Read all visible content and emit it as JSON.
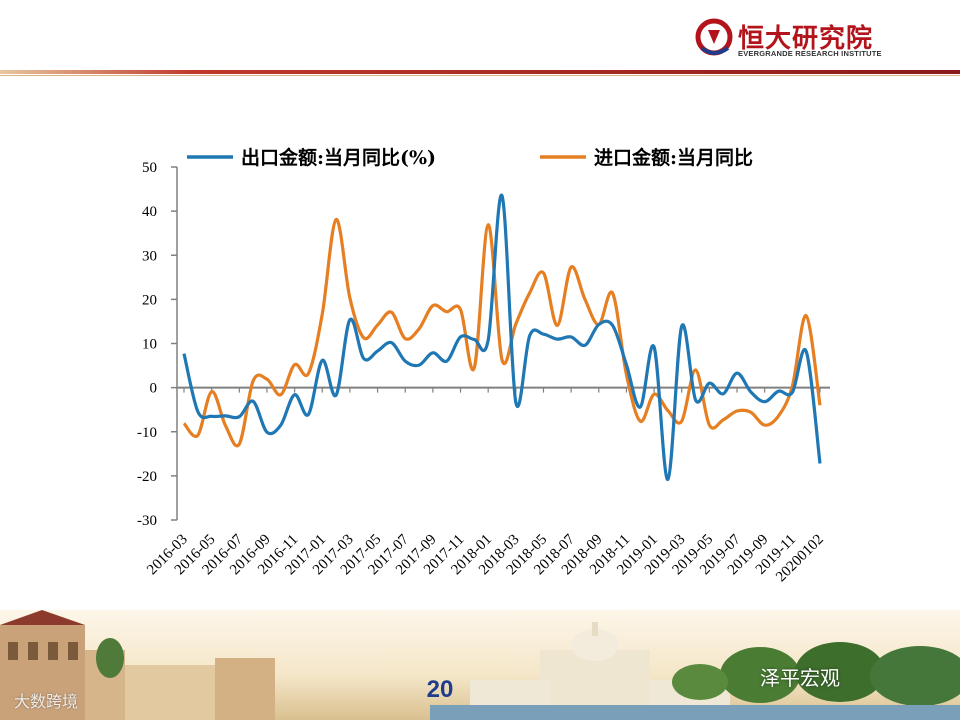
{
  "brand": {
    "name_cn": "恒大研究院",
    "name_en": "EVERGRANDE RESEARCH INSTITUTE",
    "logo_color": "#b3141b"
  },
  "page_number": "20",
  "watermarks": {
    "right": "泽平宏观",
    "left": "大数跨境"
  },
  "colors": {
    "export": "#1f78b4",
    "import": "#e67e22",
    "axis": "#808080"
  },
  "chart_data": {
    "type": "line",
    "x_tick_labels": [
      "2016-03",
      "2016-05",
      "2016-07",
      "2016-09",
      "2016-11",
      "2017-01",
      "2017-03",
      "2017-05",
      "2017-07",
      "2017-09",
      "2017-11",
      "2018-01",
      "2018-03",
      "2018-05",
      "2018-07",
      "2018-09",
      "2018-11",
      "2019-01",
      "2019-03",
      "2019-05",
      "2019-07",
      "2019-09",
      "2019-11",
      "20200102"
    ],
    "x": [
      "2016-03",
      "2016-04",
      "2016-05",
      "2016-06",
      "2016-07",
      "2016-08",
      "2016-09",
      "2016-10",
      "2016-11",
      "2016-12",
      "2017-01",
      "2017-02",
      "2017-03",
      "2017-04",
      "2017-05",
      "2017-06",
      "2017-07",
      "2017-08",
      "2017-09",
      "2017-10",
      "2017-11",
      "2017-12",
      "2018-01",
      "2018-02",
      "2018-03",
      "2018-04",
      "2018-05",
      "2018-06",
      "2018-07",
      "2018-08",
      "2018-09",
      "2018-10",
      "2018-11",
      "2018-12",
      "2019-01",
      "2019-02",
      "2019-03",
      "2019-04",
      "2019-05",
      "2019-06",
      "2019-07",
      "2019-08",
      "2019-09",
      "2019-10",
      "2019-11",
      "2019-12",
      "20200102"
    ],
    "series": [
      {
        "name": "出口金额:当月同比(%)",
        "values": [
          7.7,
          -5.4,
          -6.5,
          -6.4,
          -6.6,
          -3.1,
          -10.1,
          -8.5,
          -1.6,
          -6.1,
          6.2,
          -1.7,
          15.4,
          6.6,
          8.3,
          10.2,
          6.0,
          5.1,
          7.9,
          6.0,
          11.5,
          10.9,
          10.8,
          43.5,
          -3.3,
          11.8,
          12.1,
          11.0,
          11.5,
          9.6,
          14.3,
          14.1,
          5.2,
          -4.4,
          9.2,
          -20.8,
          13.9,
          -2.8,
          1.0,
          -1.4,
          3.3,
          -1.0,
          -3.2,
          -0.8,
          -1.1,
          8.2,
          -17.2
        ]
      },
      {
        "name": "进口金额:当月同比",
        "values": [
          -8.1,
          -10.8,
          -0.9,
          -8.6,
          -12.8,
          1.5,
          1.9,
          -1.6,
          5.2,
          3.2,
          16.7,
          38.1,
          20.3,
          11.3,
          14.2,
          17.1,
          11.1,
          13.3,
          18.6,
          17.2,
          17.7,
          4.5,
          36.9,
          6.3,
          14.4,
          21.5,
          26.0,
          14.1,
          27.3,
          20.0,
          14.3,
          21.4,
          3.0,
          -7.6,
          -1.5,
          -5.2,
          -7.6,
          4.0,
          -8.5,
          -7.3,
          -5.3,
          -5.6,
          -8.5,
          -6.4,
          0.3,
          16.3,
          -4.0
        ]
      }
    ],
    "yticks": [
      50,
      40,
      30,
      20,
      10,
      0,
      -10,
      -20,
      -30
    ],
    "ylim": [
      -30,
      50
    ],
    "legend_position": "top",
    "grid": false
  }
}
